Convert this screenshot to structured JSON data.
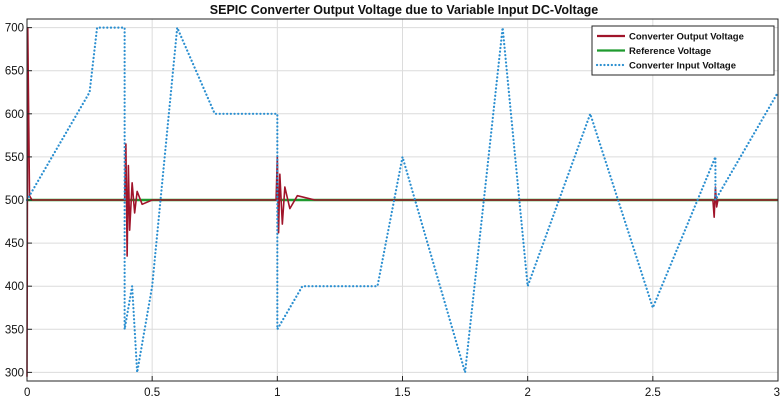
{
  "chart_data": {
    "type": "line",
    "title": "SEPIC Converter Output Voltage due to Variable Input DC-Voltage",
    "xlabel": "",
    "ylabel": "",
    "xlim": [
      0,
      3
    ],
    "ylim": [
      290,
      710
    ],
    "xticks": [
      0,
      0.5,
      1,
      1.5,
      2,
      2.5,
      3
    ],
    "xtick_labels": [
      "0",
      "0.5",
      "1",
      "1.5",
      "2",
      "2.5",
      "3"
    ],
    "yticks": [
      300,
      350,
      400,
      450,
      500,
      550,
      600,
      650,
      700
    ],
    "ytick_labels": [
      "300",
      "350",
      "400",
      "450",
      "500",
      "550",
      "600",
      "650",
      "700"
    ],
    "grid": true,
    "legend_position": "top-right",
    "series": [
      {
        "name": "Converter Output Voltage",
        "color": "#a0142a",
        "style": "solid",
        "x": [
          0,
          0.003,
          0.01,
          0.02,
          0.39,
          0.395,
          0.4,
          0.405,
          0.41,
          0.42,
          0.43,
          0.44,
          0.46,
          0.5,
          0.995,
          1.0,
          1.005,
          1.01,
          1.02,
          1.03,
          1.05,
          1.08,
          1.15,
          2.74,
          2.745,
          2.75,
          2.755,
          2.76,
          3.0
        ],
        "values": [
          295,
          700,
          505,
          500,
          500,
          565,
          435,
          540,
          465,
          520,
          485,
          510,
          495,
          500,
          500,
          550,
          462,
          530,
          472,
          515,
          490,
          505,
          500,
          500,
          480,
          515,
          492,
          500,
          500
        ]
      },
      {
        "name": "Reference Voltage",
        "color": "#1f9a2e",
        "style": "solid",
        "x": [
          0,
          3
        ],
        "values": [
          500,
          500
        ]
      },
      {
        "name": "Converter Input Voltage",
        "color": "#2b8fd0",
        "style": "dotted",
        "x": [
          0,
          0.25,
          0.28,
          0.39,
          0.39,
          0.42,
          0.44,
          0.5,
          0.6,
          0.75,
          1.0,
          1.0,
          1.1,
          1.4,
          1.5,
          1.75,
          1.9,
          2.0,
          2.25,
          2.5,
          2.75,
          2.75,
          3.0
        ],
        "values": [
          500,
          625,
          700,
          700,
          350,
          400,
          300,
          400,
          700,
          600,
          600,
          350,
          400,
          400,
          550,
          300,
          700,
          400,
          600,
          375,
          550,
          500,
          625
        ]
      }
    ]
  }
}
